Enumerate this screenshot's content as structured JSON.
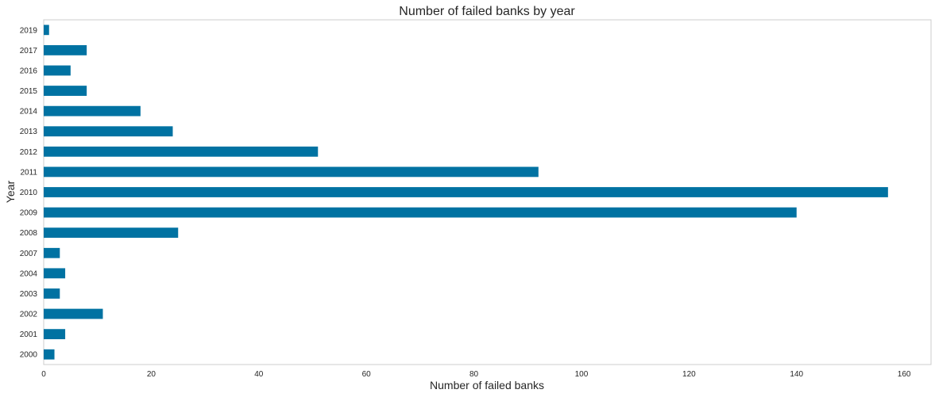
{
  "chart_data": {
    "type": "bar",
    "orientation": "horizontal",
    "title": "Number of failed banks by year",
    "xlabel": "Number of failed banks",
    "ylabel": "Year",
    "categories": [
      "2000",
      "2001",
      "2002",
      "2003",
      "2004",
      "2007",
      "2008",
      "2009",
      "2010",
      "2011",
      "2012",
      "2013",
      "2014",
      "2015",
      "2016",
      "2017",
      "2019"
    ],
    "values": [
      2,
      4,
      11,
      3,
      4,
      3,
      25,
      140,
      157,
      92,
      51,
      24,
      18,
      8,
      5,
      8,
      1
    ],
    "xlim": [
      0,
      165
    ],
    "xticks": [
      0,
      20,
      40,
      60,
      80,
      100,
      120,
      140,
      160
    ],
    "grid": false,
    "bar_color": "#0072a2",
    "frame_color": "#cccccc"
  }
}
